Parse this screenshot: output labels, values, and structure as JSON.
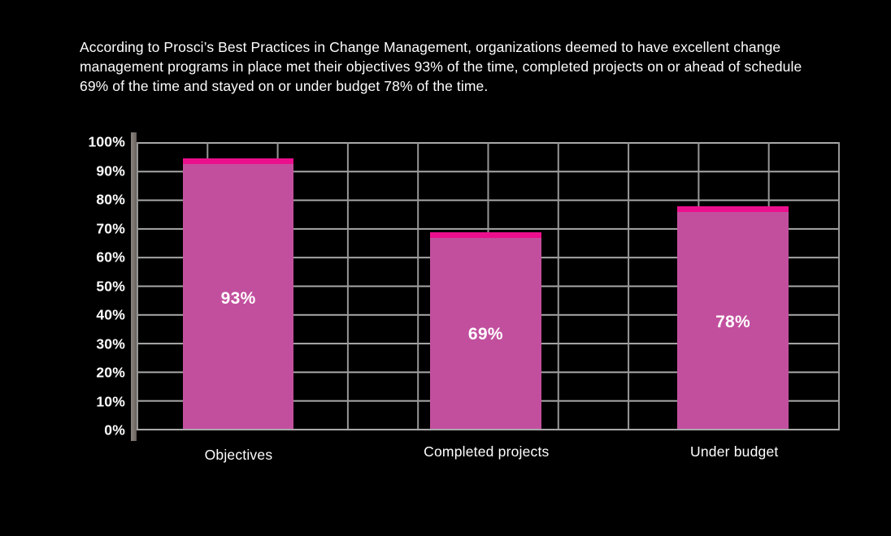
{
  "intro": {
    "lines": [
      "According to Prosci’s Best Practices in Change Management, organizations deemed to have excellent change",
      "management programs in place met their objectives 93% of the time, completed projects on or ahead of schedule",
      "69% of the time and stayed on or under budget 78% of the time."
    ],
    "full_text": "According to Prosci’s Best Practices in Change Management, organizations deemed to have excellent change management programs in place met their objectives 93% of the time, completed projects on or ahead of schedule 69% of the time and stayed on or under budget 78% of the time."
  },
  "chart_data": {
    "type": "bar",
    "title": "",
    "categories": [
      "Objectives",
      "Completed projects",
      "Under budget"
    ],
    "values": [
      93,
      69,
      78
    ],
    "data_labels": [
      "93%",
      "69%",
      "78%"
    ],
    "display_heights_pct": [
      94.4,
      68.7,
      77.5
    ],
    "xlabel": "",
    "ylabel": "",
    "ylim": [
      0,
      100
    ],
    "y_tick_step": 10,
    "y_ticks": [
      "0%",
      "10%",
      "20%",
      "30%",
      "40%",
      "50%",
      "60%",
      "70%",
      "80%",
      "90%",
      "100%"
    ],
    "grid": "on",
    "legend": "none",
    "colors": {
      "background": "#000000",
      "bar_body": "#c24f9e",
      "bar_cap": "#ec0f8d",
      "grid_horizontal": "#a9a9a9",
      "grid_vertical": "#979797",
      "axis_bar": "#7a736e",
      "text": "#ffffff"
    }
  }
}
